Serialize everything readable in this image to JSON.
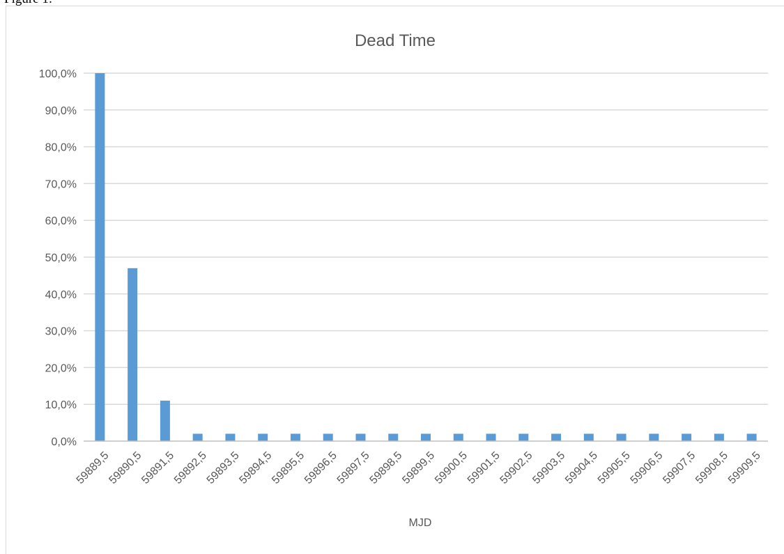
{
  "page": {
    "caption": "Figure 1:"
  },
  "colors": {
    "bar": "#5b9bd5",
    "gridline": "#d9d9d9",
    "axis_line": "#bfbfbf",
    "text": "#595959",
    "title": "#595959"
  },
  "chart_data": {
    "type": "bar",
    "title": "Dead Time",
    "xlabel": "MJD",
    "ylabel": "",
    "y_format": "percent_one_decimal_comma",
    "ylim": [
      0,
      1.0
    ],
    "y_ticks": [
      "0,0%",
      "10,0%",
      "20,0%",
      "30,0%",
      "40,0%",
      "50,0%",
      "60,0%",
      "70,0%",
      "80,0%",
      "90,0%",
      "100,0%"
    ],
    "y_tick_values": [
      0,
      0.1,
      0.2,
      0.3,
      0.4,
      0.5,
      0.6,
      0.7,
      0.8,
      0.9,
      1.0
    ],
    "categories": [
      "59889,5",
      "59890,5",
      "59891,5",
      "59892,5",
      "59893,5",
      "59894,5",
      "59895,5",
      "59896,5",
      "59897,5",
      "59898,5",
      "59899,5",
      "59900,5",
      "59901,5",
      "59902,5",
      "59903,5",
      "59904,5",
      "59905,5",
      "59906,5",
      "59907,5",
      "59908,5",
      "59909,5"
    ],
    "values": [
      1.0,
      0.47,
      0.11,
      0.02,
      0.02,
      0.02,
      0.02,
      0.02,
      0.02,
      0.02,
      0.02,
      0.02,
      0.02,
      0.02,
      0.02,
      0.02,
      0.02,
      0.02,
      0.02,
      0.02,
      0.02
    ],
    "grid": true,
    "legend": "none"
  }
}
